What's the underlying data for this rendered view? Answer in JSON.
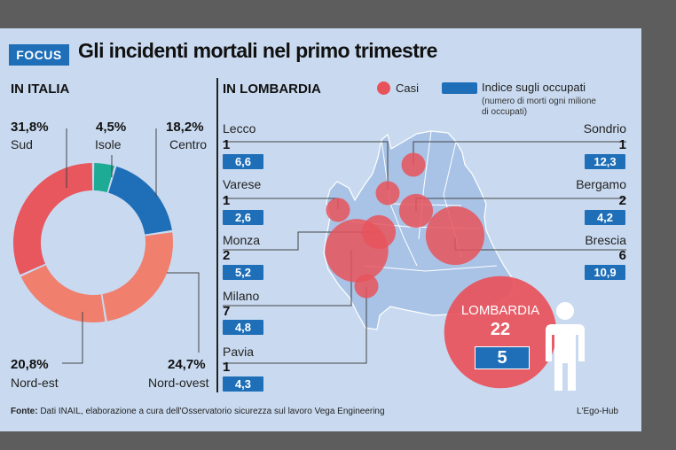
{
  "header": {
    "tag": "FOCUS",
    "title": "Gli incidenti mortali nel primo trimestre"
  },
  "italia": {
    "heading": "IN ITALIA"
  },
  "lombardia": {
    "heading": "IN LOMBARDIA"
  },
  "legend": {
    "cases": "Casi",
    "index": "Indice sugli occupati",
    "index_sub_1": "(numero di morti ogni milione",
    "index_sub_2": "di occupati)"
  },
  "colors": {
    "red": "#e8565e",
    "salmon": "#f07f6e",
    "blue": "#1f6fb8",
    "teal": "#1eab95",
    "bubble": "#e8535b"
  },
  "chart_data": [
    {
      "type": "pie",
      "title": "IN ITALIA",
      "slices": [
        {
          "label": "Isole",
          "value": 4.5,
          "display": "4,5%",
          "color": "#1eab95"
        },
        {
          "label": "Centro",
          "value": 18.2,
          "display": "18,2%",
          "color": "#1f6fb8"
        },
        {
          "label": "Nord-ovest",
          "value": 24.7,
          "display": "24,7%",
          "color": "#f07f6e"
        },
        {
          "label": "Nord-est",
          "value": 20.8,
          "display": "20,8%",
          "color": "#f07f6e"
        },
        {
          "label": "Sud",
          "value": 31.8,
          "display": "31,8%",
          "color": "#e8565e"
        }
      ]
    },
    {
      "type": "table",
      "title": "IN LOMBARDIA",
      "columns": [
        "Casi",
        "Indice sugli occupati"
      ],
      "rows": [
        {
          "province": "Lecco",
          "cases": "1",
          "index": "6,6"
        },
        {
          "province": "Varese",
          "cases": "1",
          "index": "2,6"
        },
        {
          "province": "Monza",
          "cases": "2",
          "index": "5,2"
        },
        {
          "province": "Milano",
          "cases": "7",
          "index": "4,8"
        },
        {
          "province": "Pavia",
          "cases": "1",
          "index": "4,3"
        },
        {
          "province": "Sondrio",
          "cases": "1",
          "index": "12,3"
        },
        {
          "province": "Bergamo",
          "cases": "2",
          "index": "4,2"
        },
        {
          "province": "Brescia",
          "cases": "6",
          "index": "10,9"
        }
      ],
      "total": {
        "label": "LOMBARDIA",
        "cases": "22",
        "index": "5"
      }
    }
  ],
  "footer": {
    "source_label": "Fonte:",
    "source_text": " Dati INAIL, elaborazione a cura dell'Osservatorio sicurezza sul lavoro Vega Engineering",
    "credit": "L'Ego-Hub"
  }
}
